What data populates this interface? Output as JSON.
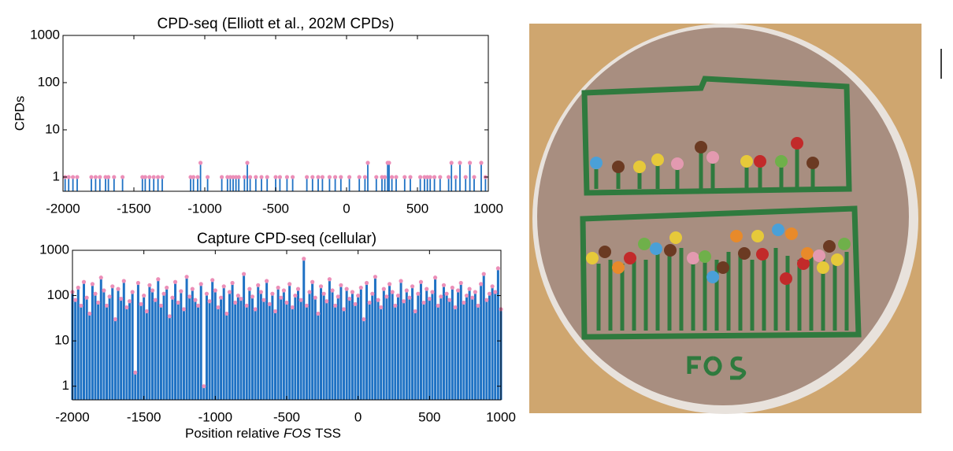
{
  "chart_data": [
    {
      "type": "stem",
      "title": "CPD-seq (Elliott et al., 202M CPDs)",
      "ylabel": "CPDs",
      "log_y": true,
      "color": "#1f72c4",
      "marker_color": "#ec8fb8",
      "xlim": [
        -2000,
        1000
      ],
      "xticks": [
        -2000,
        -1500,
        -1000,
        -500,
        0,
        500,
        1000
      ],
      "ylim": [
        0.5,
        1000
      ],
      "yticks": [
        1,
        10,
        100,
        1000
      ],
      "x": [
        -1985,
        -1960,
        -1930,
        -1900,
        -1800,
        -1770,
        -1740,
        -1700,
        -1680,
        -1640,
        -1580,
        -1440,
        -1420,
        -1390,
        -1360,
        -1330,
        -1300,
        -1100,
        -1080,
        -1050,
        -1030,
        -980,
        -880,
        -840,
        -820,
        -800,
        -780,
        -760,
        -720,
        -700,
        -680,
        -640,
        -600,
        -560,
        -500,
        -470,
        -420,
        -380,
        -280,
        -240,
        -200,
        -170,
        -120,
        -80,
        -40,
        20,
        90,
        130,
        150,
        210,
        250,
        270,
        290,
        300,
        320,
        350,
        410,
        450,
        520,
        550,
        570,
        590,
        620,
        660,
        720,
        740,
        770,
        800,
        840,
        870,
        900,
        950,
        980
      ],
      "values": [
        1,
        1,
        1,
        1,
        1,
        1,
        1,
        1,
        1,
        1,
        1,
        1,
        1,
        1,
        1,
        1,
        1,
        1,
        1,
        1,
        2,
        1,
        1,
        1,
        1,
        1,
        1,
        1,
        1,
        2,
        1,
        1,
        1,
        1,
        1,
        1,
        1,
        1,
        1,
        1,
        1,
        1,
        1,
        1,
        1,
        1,
        1,
        1,
        2,
        1,
        1,
        1,
        2,
        2,
        1,
        1,
        1,
        1,
        1,
        1,
        1,
        1,
        1,
        1,
        1,
        2,
        1,
        2,
        1,
        2,
        1,
        2,
        1
      ]
    },
    {
      "type": "stem",
      "title": "Capture CPD-seq (cellular)",
      "xlabel": [
        "Position relative",
        "FOS",
        "TSS"
      ],
      "log_y": true,
      "color": "#1f72c4",
      "marker_color": "#ec8fb8",
      "xlim": [
        -2000,
        1000
      ],
      "xticks": [
        -2000,
        -1500,
        -1000,
        -500,
        0,
        500,
        1000
      ],
      "ylim": [
        0.5,
        1000
      ],
      "yticks": [
        1,
        10,
        100,
        1000
      ],
      "x": [
        -2000,
        -1980,
        -1960,
        -1940,
        -1920,
        -1900,
        -1880,
        -1860,
        -1840,
        -1820,
        -1800,
        -1780,
        -1760,
        -1740,
        -1720,
        -1700,
        -1680,
        -1660,
        -1640,
        -1620,
        -1600,
        -1580,
        -1560,
        -1540,
        -1520,
        -1500,
        -1480,
        -1460,
        -1440,
        -1420,
        -1400,
        -1380,
        -1360,
        -1340,
        -1320,
        -1300,
        -1280,
        -1260,
        -1240,
        -1220,
        -1200,
        -1180,
        -1160,
        -1140,
        -1120,
        -1100,
        -1080,
        -1060,
        -1040,
        -1020,
        -1000,
        -980,
        -960,
        -940,
        -920,
        -900,
        -880,
        -860,
        -840,
        -820,
        -800,
        -780,
        -760,
        -740,
        -720,
        -700,
        -680,
        -660,
        -640,
        -620,
        -600,
        -580,
        -560,
        -540,
        -520,
        -500,
        -480,
        -460,
        -440,
        -420,
        -400,
        -380,
        -360,
        -340,
        -320,
        -300,
        -280,
        -260,
        -240,
        -220,
        -200,
        -180,
        -160,
        -140,
        -120,
        -100,
        -80,
        -60,
        -40,
        -20,
        0,
        20,
        40,
        60,
        80,
        100,
        120,
        140,
        160,
        180,
        200,
        220,
        240,
        260,
        280,
        300,
        320,
        340,
        360,
        380,
        400,
        420,
        440,
        460,
        480,
        500,
        520,
        540,
        560,
        580,
        600,
        620,
        640,
        660,
        680,
        700,
        720,
        740,
        760,
        780,
        800,
        820,
        840,
        860,
        880,
        900,
        920,
        940,
        960,
        980,
        1000
      ],
      "values": [
        120,
        80,
        150,
        60,
        200,
        90,
        40,
        180,
        110,
        70,
        250,
        130,
        60,
        95,
        160,
        30,
        140,
        85,
        210,
        55,
        75,
        120,
        2,
        190,
        65,
        100,
        45,
        170,
        130,
        80,
        230,
        60,
        110,
        150,
        35,
        90,
        200,
        70,
        125,
        50,
        260,
        95,
        140,
        80,
        60,
        180,
        1,
        110,
        75,
        220,
        130,
        55,
        90,
        160,
        40,
        120,
        190,
        70,
        100,
        85,
        300,
        60,
        140,
        95,
        50,
        170,
        120,
        80,
        210,
        65,
        110,
        45,
        150,
        90,
        130,
        70,
        180,
        55,
        100,
        140,
        80,
        650,
        60,
        120,
        200,
        90,
        40,
        160,
        110,
        75,
        230,
        130,
        60,
        95,
        170,
        50,
        140,
        85,
        120,
        65,
        100,
        150,
        30,
        190,
        70,
        110,
        260,
        80,
        55,
        140,
        95,
        180,
        120,
        60,
        100,
        210,
        75,
        130,
        90,
        160,
        45,
        110,
        200,
        70,
        140,
        85,
        120,
        250,
        60,
        95,
        170,
        110,
        80,
        150,
        55,
        130,
        190,
        70,
        100,
        140,
        90,
        120,
        60,
        180,
        300,
        80,
        110,
        160,
        120,
        400,
        50
      ]
    }
  ]
}
